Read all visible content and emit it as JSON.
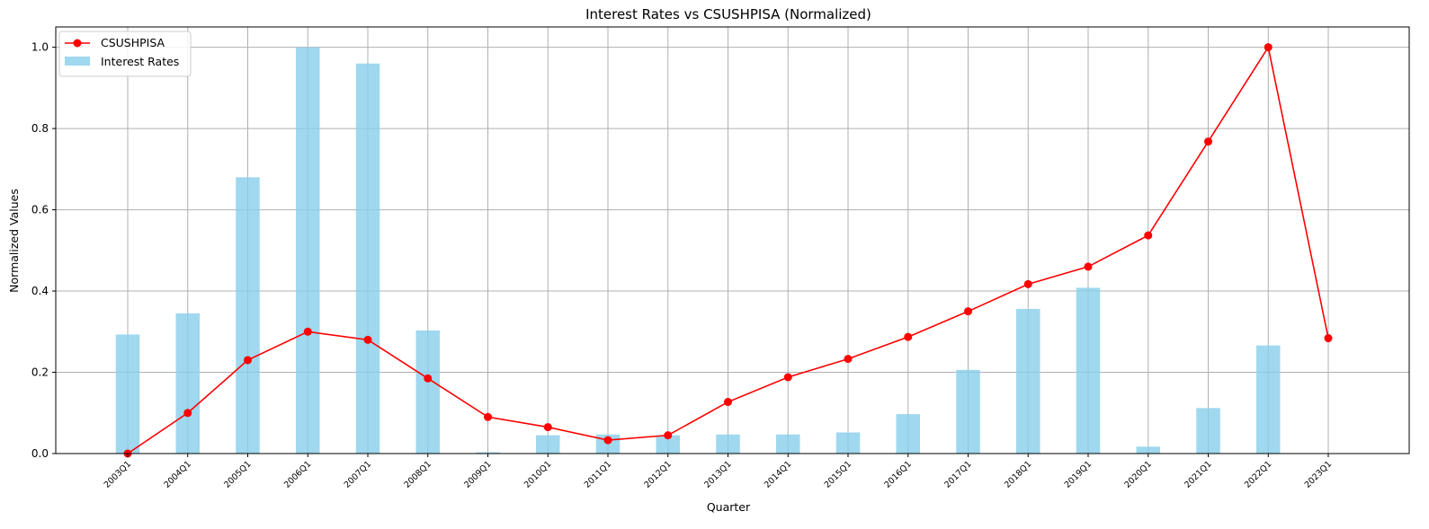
{
  "chart_data": {
    "type": "bar+line",
    "title": "Interest Rates vs CSUSHPISA (Normalized)",
    "xlabel": "Quarter",
    "ylabel": "Normalized Values",
    "ylim": [
      0,
      1.05
    ],
    "yticks": [
      "0.0",
      "0.2",
      "0.4",
      "0.6",
      "0.8",
      "1.0"
    ],
    "grid": true,
    "legend_position": "top-left",
    "categories": [
      "2003Q1",
      "2004Q1",
      "2005Q1",
      "2006Q1",
      "2007Q1",
      "2008Q1",
      "2009Q1",
      "2010Q1",
      "2011Q1",
      "2012Q1",
      "2013Q1",
      "2014Q1",
      "2015Q1",
      "2016Q1",
      "2017Q1",
      "2018Q1",
      "2019Q1",
      "2020Q1",
      "2021Q1",
      "2022Q1",
      "2023Q1"
    ],
    "series": [
      {
        "name": "CSUSHPISA",
        "kind": "line",
        "color": "#ff0000",
        "marker": "circle",
        "values": [
          0.0,
          0.1,
          0.23,
          0.3,
          0.28,
          0.185,
          0.09,
          0.065,
          0.033,
          0.045,
          0.127,
          0.188,
          0.233,
          0.287,
          0.35,
          0.417,
          0.46,
          0.537,
          0.768,
          1.0,
          0.284
        ]
      },
      {
        "name": "Interest Rates",
        "kind": "bar",
        "color": "#87ceeb",
        "values": [
          0.293,
          0.345,
          0.68,
          1.0,
          0.96,
          0.303,
          0.003,
          0.045,
          0.047,
          0.045,
          0.047,
          0.047,
          0.052,
          0.097,
          0.206,
          0.356,
          0.408,
          0.017,
          0.112,
          0.266,
          0.0
        ]
      }
    ]
  }
}
